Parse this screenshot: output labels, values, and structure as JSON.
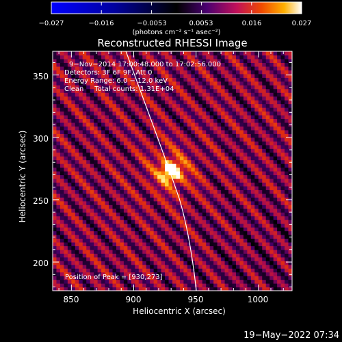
{
  "chart_data": {
    "type": "heatmap",
    "title": "Reconstructed RHESSI Image",
    "xlabel": "Heliocentric X (arcsec)",
    "ylabel": "Heliocentric Y (arcsec)",
    "xlim": [
      835,
      1027
    ],
    "ylim": [
      177,
      369
    ],
    "xticks": [
      850,
      900,
      950,
      1000
    ],
    "yticks": [
      200,
      250,
      300,
      350
    ],
    "colorbar": {
      "min": -0.027,
      "max": 0.027,
      "ticks": [
        "−0.027",
        "−0.016",
        "−0.0053",
        "0.0053",
        "0.016",
        "0.027"
      ],
      "label": "(photons cm⁻² s⁻¹ asec⁻²)",
      "colormap": [
        "#0000ff",
        "#000000",
        "#3a0070",
        "#a0006a",
        "#e02a10",
        "#ff9a00",
        "#ffff80",
        "#ffffff"
      ]
    },
    "annotations": [
      "9−Nov−2014 17:00:48.000 to 17:02:56.000",
      "Detectors: 3F 6F 9F, Att 0",
      "Energy Range: 6.0 − 12.0 keV",
      "Clean     Total counts: 1.31E+04"
    ],
    "peak_label": "Position of Peak = [930,273]",
    "peak": [
      930,
      273
    ],
    "limb_color": "#ffffff"
  },
  "footer": {
    "timestamp": "19−May−2022 07:34"
  }
}
